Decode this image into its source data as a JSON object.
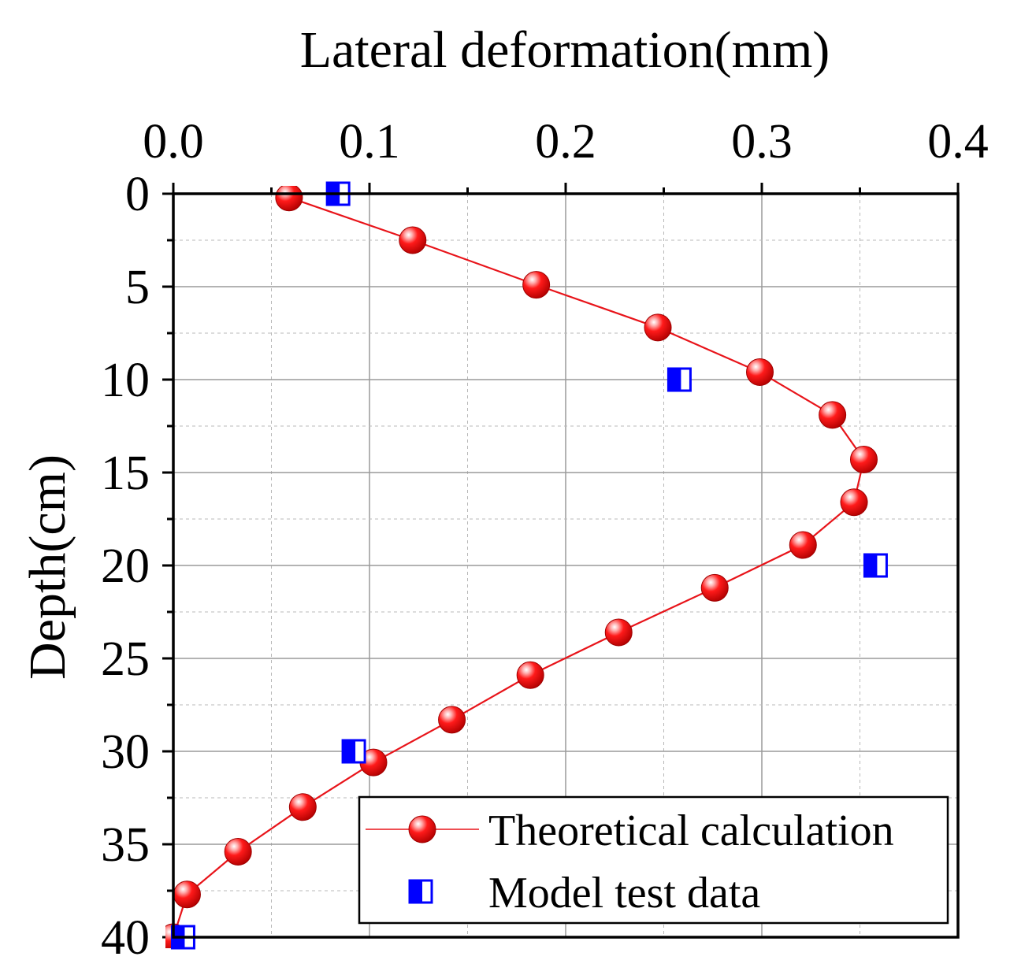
{
  "chart_data": {
    "type": "line",
    "title": "",
    "xlabel": "Lateral deformation(mm)",
    "ylabel": "Depth(cm)",
    "xlim": [
      0.0,
      0.4
    ],
    "ylim": [
      0,
      40
    ],
    "y_inverted": true,
    "x_axis_position": "top",
    "grid": true,
    "x_ticks": [
      0.0,
      0.1,
      0.2,
      0.3,
      0.4
    ],
    "x_tick_labels": [
      "0.0",
      "0.1",
      "0.2",
      "0.3",
      "0.4"
    ],
    "y_ticks": [
      0,
      5,
      10,
      15,
      20,
      25,
      30,
      35,
      40
    ],
    "y_tick_labels": [
      "0",
      "5",
      "10",
      "15",
      "20",
      "25",
      "30",
      "35",
      "40"
    ],
    "legend_position": "bottom-right",
    "series": [
      {
        "name": "Theoretical calculation",
        "style": "line-with-sphere-markers",
        "color": "#e8141a",
        "points": [
          [
            0.059,
            0.2
          ],
          [
            0.122,
            2.5
          ],
          [
            0.185,
            4.9
          ],
          [
            0.247,
            7.2
          ],
          [
            0.299,
            9.6
          ],
          [
            0.336,
            11.9
          ],
          [
            0.352,
            14.3
          ],
          [
            0.347,
            16.6
          ],
          [
            0.321,
            18.9
          ],
          [
            0.276,
            21.2
          ],
          [
            0.227,
            23.6
          ],
          [
            0.182,
            25.9
          ],
          [
            0.142,
            28.3
          ],
          [
            0.102,
            30.6
          ],
          [
            0.066,
            33.0
          ],
          [
            0.033,
            35.4
          ],
          [
            0.007,
            37.7
          ],
          [
            0.0,
            40.0
          ]
        ]
      },
      {
        "name": "Model test data",
        "style": "half-filled-square-markers",
        "color": "#0000ff",
        "points": [
          [
            0.084,
            0.0
          ],
          [
            0.258,
            10.0
          ],
          [
            0.358,
            20.0
          ],
          [
            0.092,
            30.0
          ],
          [
            0.005,
            40.0
          ]
        ]
      }
    ]
  }
}
